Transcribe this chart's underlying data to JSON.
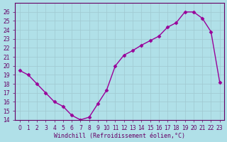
{
  "x": [
    0,
    1,
    2,
    3,
    4,
    5,
    6,
    7,
    8,
    9,
    10,
    11,
    12,
    13,
    14,
    15,
    16,
    17,
    18,
    19,
    20,
    21,
    22,
    23
  ],
  "y": [
    19.5,
    19.0,
    18.0,
    17.0,
    16.0,
    15.5,
    14.5,
    14.0,
    14.3,
    15.8,
    17.3,
    20.0,
    21.2,
    21.7,
    22.3,
    22.8,
    23.3,
    24.3,
    24.8,
    26.0,
    26.0,
    25.3,
    23.8,
    18.2
  ],
  "line_color": "#990099",
  "marker_color": "#990099",
  "bg_color": "#b0e0e8",
  "grid_color": "#a0c8d0",
  "xlabel": "Windchill (Refroidissement éolien,°C)",
  "xlim": [
    -0.5,
    23.5
  ],
  "ylim": [
    14,
    27
  ],
  "yticks": [
    14,
    15,
    16,
    17,
    18,
    19,
    20,
    21,
    22,
    23,
    24,
    25,
    26
  ],
  "xticks": [
    0,
    1,
    2,
    3,
    4,
    5,
    6,
    7,
    8,
    9,
    10,
    11,
    12,
    13,
    14,
    15,
    16,
    17,
    18,
    19,
    20,
    21,
    22,
    23
  ],
  "xtick_labels": [
    "0",
    "1",
    "2",
    "3",
    "4",
    "5",
    "6",
    "7",
    "8",
    "9",
    "10",
    "11",
    "12",
    "13",
    "14",
    "15",
    "16",
    "17",
    "18",
    "19",
    "20",
    "21",
    "22",
    "23"
  ],
  "font_color": "#660066",
  "axis_color": "#660066"
}
